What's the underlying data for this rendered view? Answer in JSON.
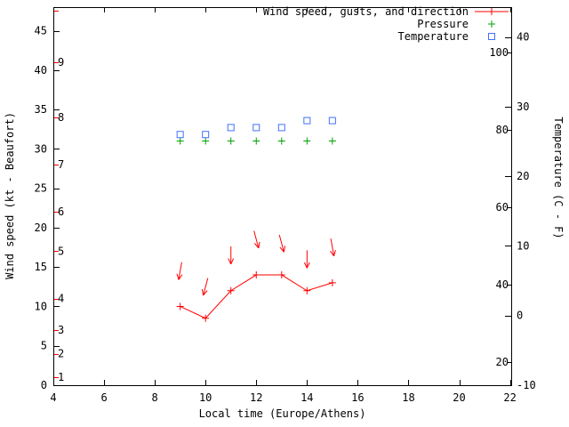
{
  "chart_data": {
    "type": "line",
    "title": "",
    "xlabel": "Local time (Europe/Athens)",
    "ylabel_left": "Wind speed (kt - Beaufort)",
    "ylabel_right": "Temperature (C - F)",
    "legend": [
      {
        "label": "Wind speed, gusts, and direction",
        "color": "#ff0000",
        "marker": "line-plus"
      },
      {
        "label": "Pressure",
        "color": "#00a000",
        "marker": "plus"
      },
      {
        "label": "Temperature",
        "color": "#4070ff",
        "marker": "open-square"
      }
    ],
    "x_hours": [
      9,
      10,
      11,
      12,
      13,
      14,
      15
    ],
    "series": [
      {
        "name": "wind_speed_kt",
        "color": "#ff0000",
        "values": [
          10,
          8.5,
          12,
          14,
          14,
          12,
          13
        ]
      },
      {
        "name": "gusts_kt",
        "color": "#ff0000",
        "values": [
          14.5,
          12.5,
          16.5,
          18.5,
          18,
          16,
          17.5
        ],
        "arrow_angles_deg_clockwise_from_up": [
          190,
          195,
          180,
          165,
          165,
          180,
          170
        ]
      },
      {
        "name": "pressure_plotted_on_left_axis",
        "color": "#00a000",
        "values": [
          31,
          31,
          31,
          31,
          31,
          31,
          31
        ]
      },
      {
        "name": "temperature_c",
        "color": "#4070ff",
        "values": [
          26,
          26,
          27,
          27,
          27,
          28,
          28
        ]
      }
    ],
    "axes": {
      "x": {
        "min": 4,
        "max": 22.05,
        "ticks": [
          4,
          6,
          8,
          10,
          12,
          14,
          16,
          18,
          20,
          22
        ]
      },
      "y_left": {
        "min": 0,
        "max": 48,
        "ticks": [
          0,
          5,
          10,
          15,
          20,
          25,
          30,
          35,
          40,
          45
        ],
        "beaufort_labels": [
          {
            "label": "1",
            "kt": 1
          },
          {
            "label": "2",
            "kt": 4
          },
          {
            "label": "3",
            "kt": 7
          },
          {
            "label": "4",
            "kt": 11
          },
          {
            "label": "5",
            "kt": 17
          },
          {
            "label": "6",
            "kt": 22
          },
          {
            "label": "7",
            "kt": 28
          },
          {
            "label": "8",
            "kt": 34
          },
          {
            "label": "9",
            "kt": 41
          }
        ],
        "extra_beaufort_ticks_kt": [
          47.5
        ],
        "beaufort_tick_color": "#ff0000"
      },
      "y_right": {
        "min": -10,
        "max": 44.3,
        "ticks_c": [
          -10,
          0,
          10,
          20,
          30,
          40
        ],
        "ticks_f": [
          20,
          40,
          60,
          80,
          100
        ]
      }
    },
    "colors": {
      "axis": "#000000",
      "background": "#ffffff"
    }
  }
}
